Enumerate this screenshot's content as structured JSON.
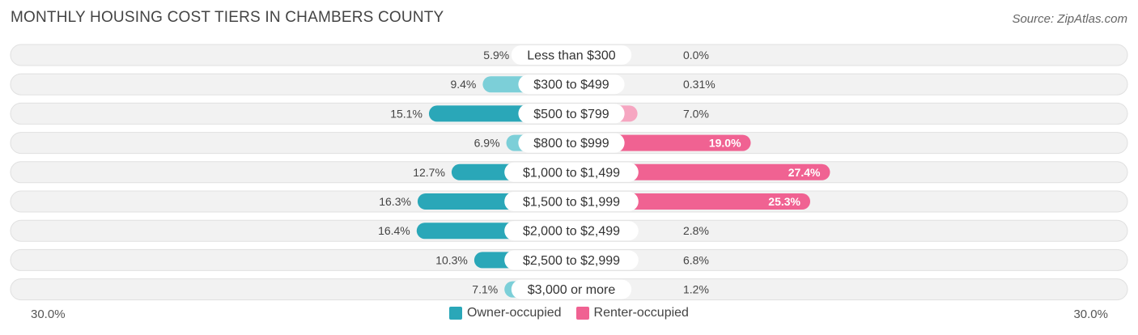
{
  "title": "MONTHLY HOUSING COST TIERS IN CHAMBERS COUNTY",
  "source": "Source: ZipAtlas.com",
  "chart_data": {
    "type": "bar",
    "orientation": "diverging-horizontal",
    "title": "MONTHLY HOUSING COST TIERS IN CHAMBERS COUNTY",
    "categories": [
      "Less than $300",
      "$300 to $499",
      "$500 to $799",
      "$800 to $999",
      "$1,000 to $1,499",
      "$1,500 to $1,999",
      "$2,000 to $2,499",
      "$2,500 to $2,999",
      "$3,000 or more"
    ],
    "series": [
      {
        "name": "Owner-occupied",
        "values": [
          5.9,
          9.4,
          15.1,
          6.9,
          12.7,
          16.3,
          16.4,
          10.3,
          7.1
        ],
        "labels": [
          "5.9%",
          "9.4%",
          "15.1%",
          "6.9%",
          "12.7%",
          "16.3%",
          "16.4%",
          "10.3%",
          "7.1%"
        ]
      },
      {
        "name": "Renter-occupied",
        "values": [
          0.0,
          0.31,
          7.0,
          19.0,
          27.4,
          25.3,
          2.8,
          6.8,
          1.2
        ],
        "labels": [
          "0.0%",
          "0.31%",
          "7.0%",
          "19.0%",
          "27.4%",
          "25.3%",
          "2.8%",
          "6.8%",
          "1.2%"
        ]
      }
    ],
    "xlim": [
      -30,
      30
    ],
    "axis_labels": {
      "left": "30.0%",
      "right": "30.0%"
    },
    "legend_position": "bottom-center"
  },
  "colors": {
    "owner_strong": "#2aa7b8",
    "owner_light": "#7ccfd8",
    "renter_strong": "#f06292",
    "renter_light": "#f6a6c1",
    "row_bg": "#f2f2f2",
    "row_border": "#e0e0e0"
  }
}
